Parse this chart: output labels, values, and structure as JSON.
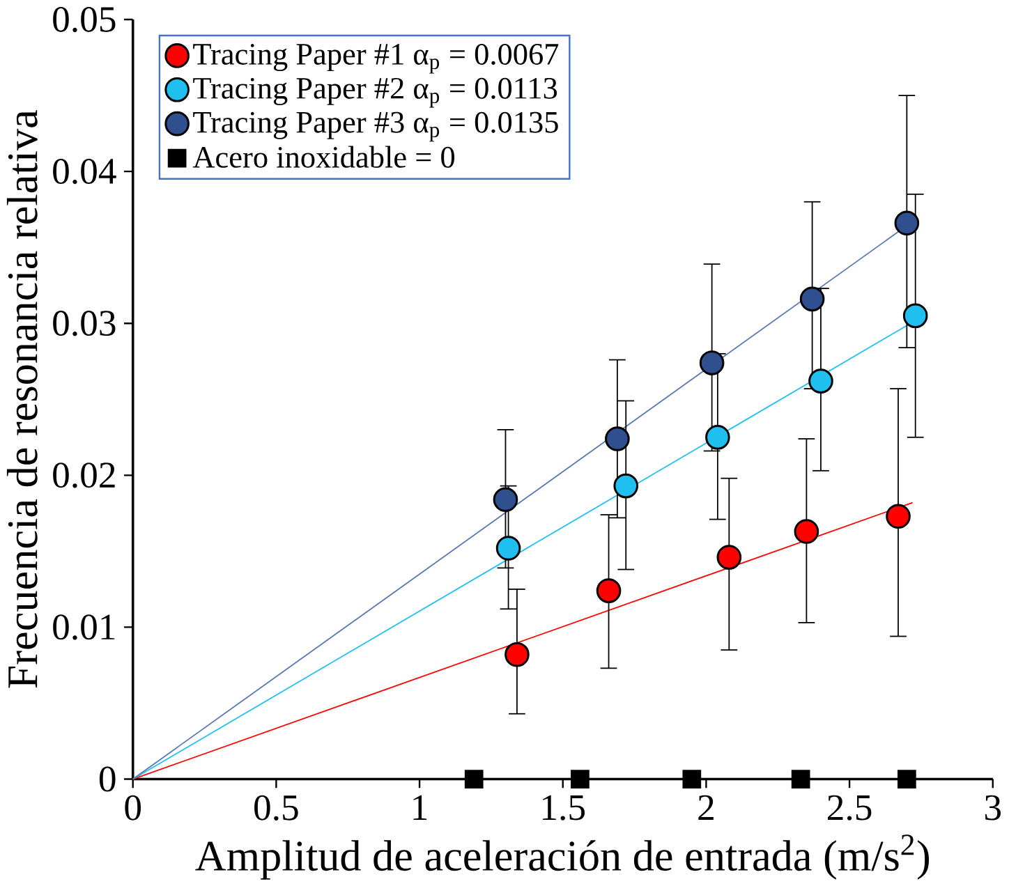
{
  "chart_data": {
    "type": "scatter",
    "xlabel": "Amplitud de aceleración de entrada (m/s$^{2}$)",
    "ylabel": "Frecuencia de resonancia relativa",
    "xlim": [
      0,
      3
    ],
    "ylim": [
      0,
      0.05
    ],
    "xticks": [
      0,
      0.5,
      1,
      1.5,
      2,
      2.5,
      3
    ],
    "yticks": [
      0,
      0.01,
      0.02,
      0.03,
      0.04,
      0.05
    ],
    "legend": "top left",
    "grid": false,
    "series": [
      {
        "name": "Tracing Paper #1 α$_{p}$ = 0.0067",
        "color": "#ff0000",
        "marker": "circle",
        "x": [
          1.34,
          1.66,
          2.08,
          2.35,
          2.67
        ],
        "values": [
          0.0082,
          0.0124,
          0.0146,
          0.0163,
          0.0173
        ],
        "errors": [
          [
            0.0043,
            0.0125
          ],
          [
            0.0073,
            0.0174
          ],
          [
            0.0085,
            0.0198
          ],
          [
            0.0103,
            0.0224
          ],
          [
            0.0094,
            0.0257
          ]
        ]
      },
      {
        "name": "Tracing Paper #2 α$_{p}$ = 0.0113",
        "color": "#1fc0f0",
        "marker": "circle",
        "x": [
          1.31,
          1.72,
          2.04,
          2.4,
          2.73
        ],
        "values": [
          0.0152,
          0.0193,
          0.0225,
          0.0262,
          0.0305
        ],
        "errors": [
          [
            0.0112,
            0.0193
          ],
          [
            0.0138,
            0.0249
          ],
          [
            0.0171,
            0.028
          ],
          [
            0.0203,
            0.0323
          ],
          [
            0.0225,
            0.0385
          ]
        ]
      },
      {
        "name": "Tracing Paper #3 α$_{p}$ = 0.0135",
        "color": "#2f4f8f",
        "marker": "circle",
        "x": [
          1.3,
          1.69,
          2.02,
          2.37,
          2.7
        ],
        "values": [
          0.0184,
          0.0224,
          0.0274,
          0.0316,
          0.0366
        ],
        "errors": [
          [
            0.0139,
            0.023
          ],
          [
            0.0172,
            0.0276
          ],
          [
            0.0216,
            0.0339
          ],
          [
            0.0257,
            0.038
          ],
          [
            0.0284,
            0.045
          ]
        ]
      },
      {
        "name": "Acero inoxidable = 0",
        "color": "#000000",
        "marker": "square",
        "x": [
          1.19,
          1.56,
          1.95,
          2.33,
          2.7
        ],
        "values": [
          0,
          0,
          0,
          0,
          0
        ]
      },
      {
        "type": "line",
        "color": "#ff0000",
        "marker": "none",
        "x": [
          0,
          2.72
        ],
        "values": [
          0,
          0.0182
        ]
      },
      {
        "type": "line",
        "color": "#1fc0f0",
        "marker": "none",
        "x": [
          0,
          2.74
        ],
        "values": [
          0,
          0.0303
        ]
      },
      {
        "type": "line",
        "color": "#5a78b0",
        "marker": "none",
        "x": [
          0,
          2.72
        ],
        "values": [
          0,
          0.0367
        ]
      }
    ]
  }
}
